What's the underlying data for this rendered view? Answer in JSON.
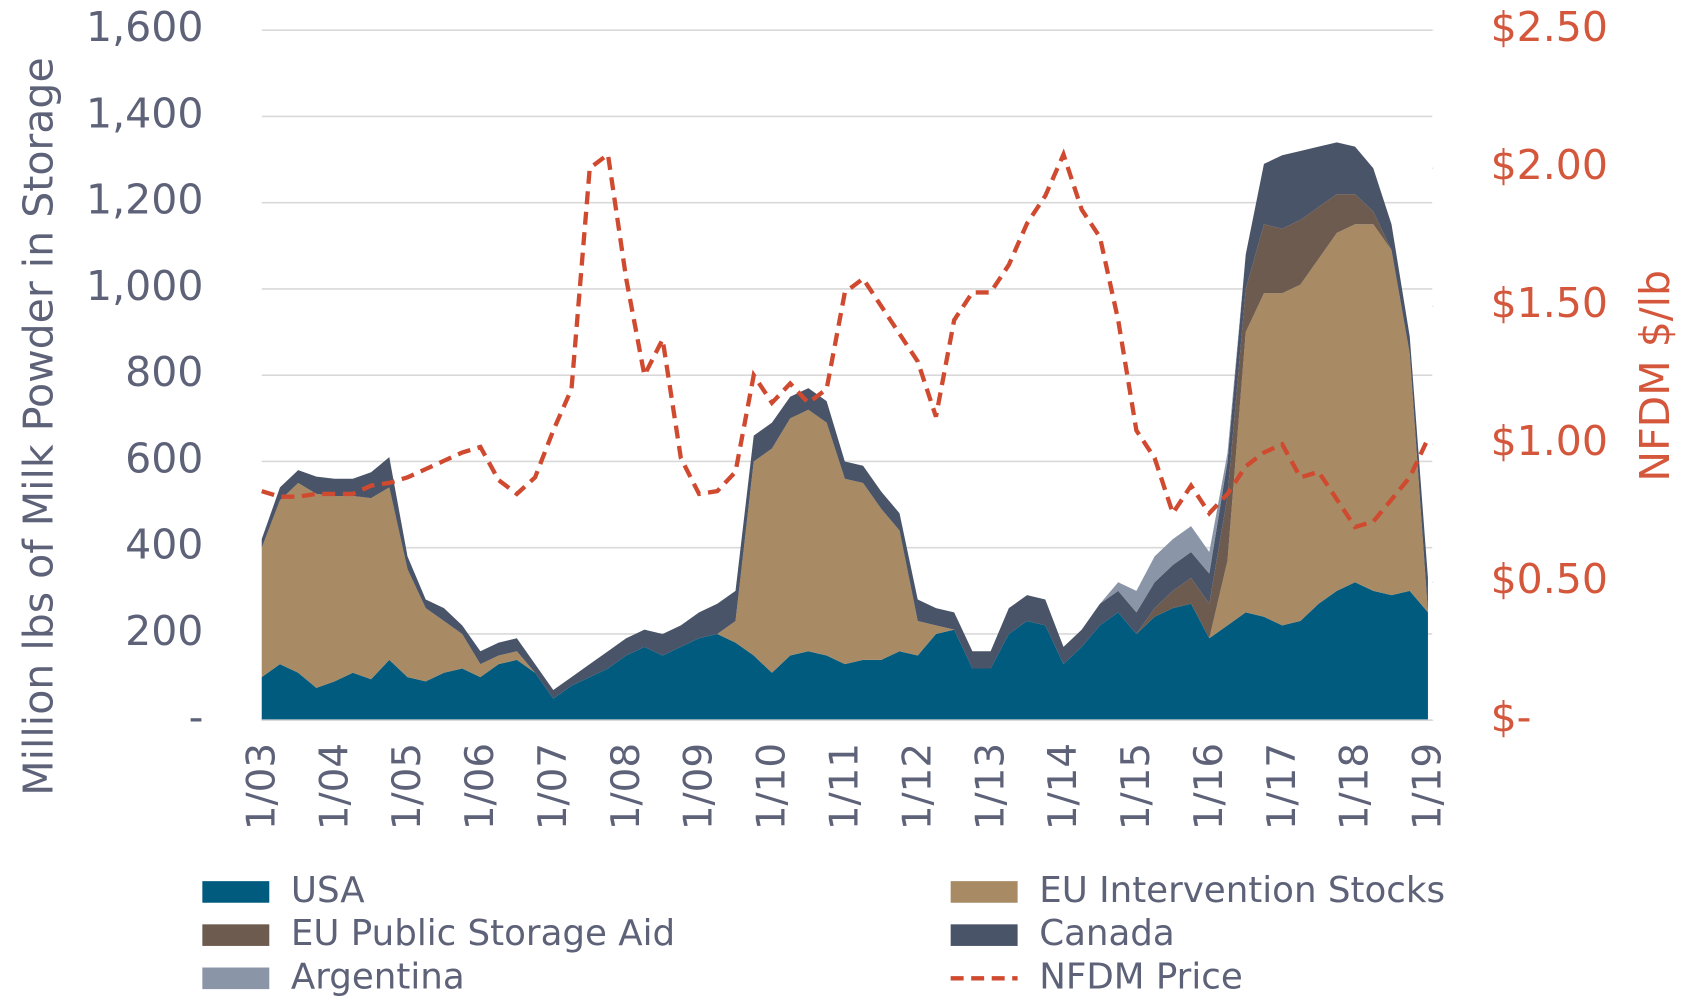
{
  "chart_data": {
    "type": "area",
    "stacked": true,
    "y_axis_label": "Million lbs of Milk Powder in Storage",
    "y2_axis_label": "NFDM $/lb",
    "categories": [
      "1/03",
      null,
      null,
      null,
      "1/04",
      null,
      null,
      null,
      "1/05",
      null,
      null,
      null,
      "1/06",
      null,
      null,
      null,
      "1/07",
      null,
      null,
      null,
      "1/08",
      null,
      null,
      null,
      "1/09",
      null,
      null,
      null,
      "1/10",
      null,
      null,
      null,
      "1/11",
      null,
      null,
      null,
      "1/12",
      null,
      null,
      null,
      "1/13",
      null,
      null,
      null,
      "1/14",
      null,
      null,
      null,
      "1/15",
      null,
      null,
      null,
      "1/16",
      null,
      null,
      null,
      "1/17",
      null,
      null,
      null,
      "1/18",
      null,
      null,
      null,
      "1/19"
    ],
    "ylim": [
      0,
      1600
    ],
    "yticks": [
      {
        "value": 0,
        "label": "-"
      },
      200,
      400,
      600,
      800,
      {
        "value": 1000,
        "label": "1,000"
      },
      {
        "value": 1200,
        "label": "1,200"
      },
      {
        "value": 1400,
        "label": "1,400"
      },
      {
        "value": 1600,
        "label": "1,600"
      }
    ],
    "y2lim": [
      0,
      2.5
    ],
    "y2ticks": [
      {
        "value": 0,
        "label": "$-"
      },
      {
        "value": 0.5,
        "label": "$0.50"
      },
      {
        "value": 1,
        "label": "$1.00"
      },
      {
        "value": 1.5,
        "label": "$1.50"
      },
      {
        "value": 2,
        "label": "$2.00"
      },
      {
        "value": 2.5,
        "label": "$2.50"
      }
    ],
    "grid": true,
    "legend": "bottom",
    "series": [
      {
        "name": "USA",
        "color": "#005b7f",
        "type": "area",
        "values": [
          100,
          130,
          110,
          75,
          90,
          110,
          95,
          140,
          100,
          90,
          110,
          120,
          100,
          130,
          140,
          110,
          50,
          80,
          100,
          120,
          150,
          170,
          150,
          170,
          190,
          200,
          180,
          150,
          110,
          150,
          160,
          150,
          130,
          140,
          140,
          160,
          150,
          200,
          210,
          120,
          120,
          200,
          230,
          220,
          130,
          170,
          220,
          250,
          200,
          240,
          260,
          270,
          190,
          220,
          250,
          240,
          220,
          230,
          270,
          300,
          320,
          300,
          290,
          300,
          250
        ]
      },
      {
        "name": "EU Intervention Stocks",
        "color": "#a88a64",
        "type": "area",
        "values": [
          300,
          380,
          440,
          450,
          430,
          410,
          420,
          400,
          250,
          170,
          120,
          80,
          30,
          20,
          20,
          0,
          0,
          0,
          0,
          0,
          0,
          0,
          0,
          0,
          0,
          0,
          50,
          450,
          520,
          550,
          560,
          540,
          430,
          410,
          350,
          280,
          80,
          20,
          0,
          0,
          0,
          0,
          0,
          0,
          0,
          0,
          0,
          0,
          0,
          0,
          0,
          0,
          0,
          150,
          650,
          750,
          770,
          780,
          800,
          830,
          830,
          850,
          800,
          550,
          0
        ]
      },
      {
        "name": "EU Public Storage Aid",
        "color": "#6e5b4f",
        "type": "area",
        "values": [
          0,
          0,
          0,
          0,
          0,
          0,
          0,
          0,
          0,
          0,
          0,
          0,
          0,
          0,
          0,
          0,
          0,
          0,
          0,
          0,
          0,
          0,
          0,
          0,
          0,
          0,
          0,
          0,
          0,
          0,
          0,
          0,
          0,
          0,
          0,
          0,
          0,
          0,
          0,
          0,
          0,
          0,
          0,
          0,
          0,
          0,
          0,
          0,
          0,
          20,
          40,
          60,
          80,
          150,
          100,
          160,
          150,
          150,
          120,
          90,
          70,
          30,
          0,
          0,
          0
        ]
      },
      {
        "name": "Canada",
        "color": "#4a5468",
        "type": "area",
        "values": [
          20,
          30,
          30,
          40,
          40,
          40,
          60,
          70,
          30,
          20,
          30,
          20,
          30,
          30,
          30,
          20,
          20,
          20,
          30,
          40,
          40,
          40,
          50,
          50,
          60,
          70,
          70,
          60,
          60,
          50,
          50,
          50,
          40,
          40,
          40,
          40,
          50,
          40,
          40,
          40,
          40,
          60,
          60,
          60,
          40,
          40,
          50,
          50,
          50,
          60,
          60,
          60,
          70,
          80,
          80,
          140,
          170,
          160,
          140,
          120,
          110,
          100,
          60,
          40,
          80
        ]
      },
      {
        "name": "Argentina",
        "color": "#8a96a8",
        "type": "area",
        "values": [
          0,
          0,
          0,
          0,
          0,
          0,
          0,
          0,
          0,
          0,
          0,
          0,
          0,
          0,
          0,
          0,
          0,
          0,
          0,
          0,
          0,
          0,
          0,
          0,
          0,
          0,
          0,
          0,
          0,
          0,
          0,
          0,
          0,
          0,
          0,
          0,
          0,
          0,
          0,
          0,
          0,
          0,
          0,
          0,
          0,
          0,
          0,
          20,
          50,
          60,
          60,
          60,
          50,
          20,
          0,
          0,
          0,
          0,
          0,
          0,
          0,
          0,
          0,
          0,
          0
        ]
      },
      {
        "name": "NFDM Price",
        "color": "#d04a30",
        "type": "line",
        "axis": "y2",
        "values": [
          0.83,
          0.81,
          0.81,
          0.82,
          0.82,
          0.82,
          0.85,
          0.86,
          0.88,
          0.91,
          0.94,
          0.97,
          0.99,
          0.87,
          0.82,
          0.88,
          1.05,
          1.2,
          2.0,
          2.05,
          1.6,
          1.25,
          1.38,
          0.95,
          0.82,
          0.83,
          0.9,
          1.25,
          1.15,
          1.22,
          1.15,
          1.2,
          1.55,
          1.6,
          1.5,
          1.4,
          1.3,
          1.1,
          1.45,
          1.55,
          1.55,
          1.65,
          1.8,
          1.9,
          2.05,
          1.85,
          1.75,
          1.45,
          1.05,
          0.95,
          0.75,
          0.85,
          0.75,
          0.82,
          0.92,
          0.97,
          1.0,
          0.88,
          0.9,
          0.8,
          0.7,
          0.72,
          0.8,
          0.88,
          1.02
        ]
      }
    ]
  }
}
